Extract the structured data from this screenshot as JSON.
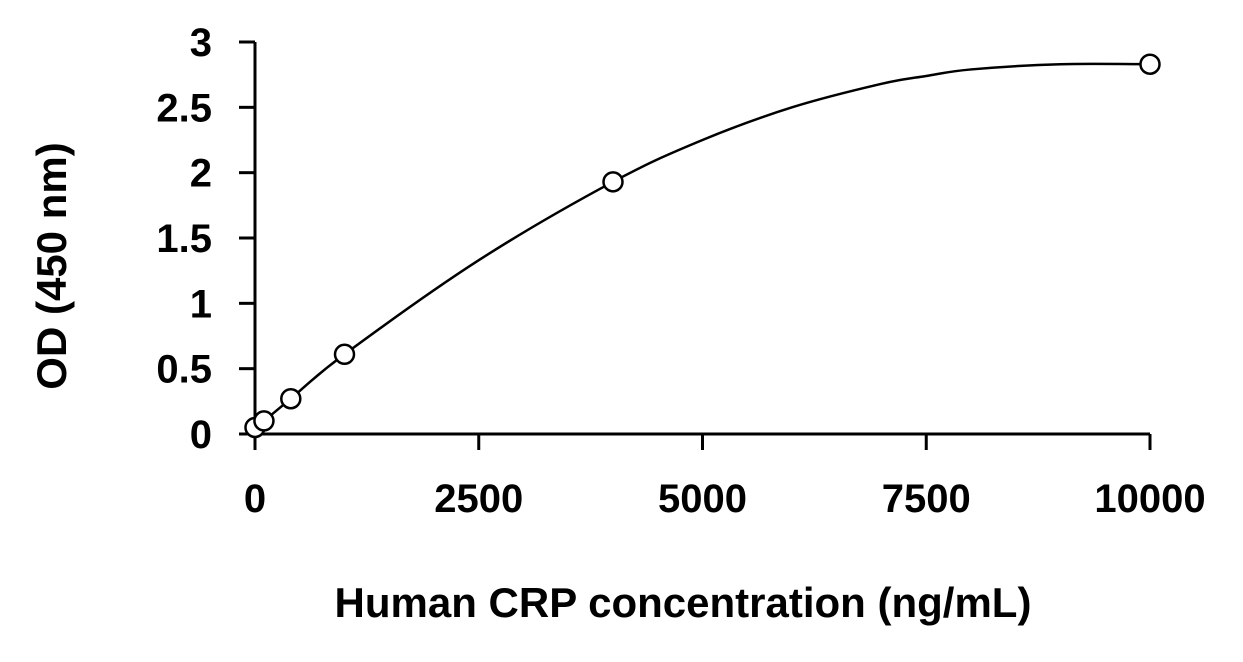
{
  "chart_data": {
    "type": "scatter",
    "title": "",
    "xlabel": "Human CRP concentration (ng/mL)",
    "ylabel": "OD (450 nm)",
    "xlim": [
      0,
      10000
    ],
    "ylim": [
      0,
      3
    ],
    "x_ticks": [
      0,
      2500,
      5000,
      7500,
      10000
    ],
    "x_tick_labels": [
      "0",
      "2500",
      "5000",
      "7500",
      "10000"
    ],
    "y_ticks": [
      0,
      0.5,
      1,
      1.5,
      2,
      2.5,
      3
    ],
    "y_tick_labels": [
      "0",
      "0.5",
      "1",
      "1.5",
      "2",
      "2.5",
      "3"
    ],
    "grid": false,
    "legend": "none",
    "series": [
      {
        "marker": "open-circle",
        "x": [
          0,
          100,
          400,
          1000,
          4000,
          10000
        ],
        "y": [
          0.05,
          0.1,
          0.27,
          0.61,
          1.93,
          2.83
        ]
      }
    ],
    "fit_curve": {
      "style": "smooth-line",
      "x": [
        0,
        100,
        400,
        1000,
        2500,
        4000,
        5000,
        6000,
        7000,
        7500,
        8000,
        9000,
        10000
      ],
      "y": [
        0.05,
        0.1,
        0.27,
        0.61,
        1.33,
        1.93,
        2.25,
        2.5,
        2.68,
        2.74,
        2.79,
        2.83,
        2.83
      ]
    },
    "colors": {
      "line": "#000000",
      "marker_stroke": "#000000",
      "marker_fill": "#ffffff",
      "background": "#ffffff"
    }
  }
}
